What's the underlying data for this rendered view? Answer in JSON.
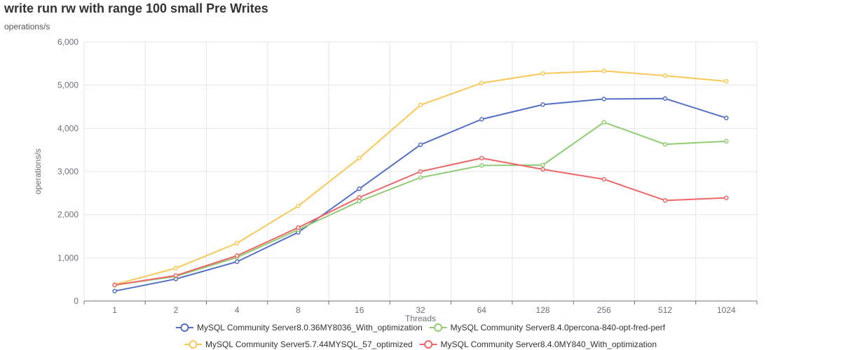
{
  "chart_data": {
    "type": "line",
    "title": "write run rw with range 100 small Pre Writes",
    "subtitle": "operations/s",
    "xlabel": "Threads",
    "ylabel": "operations/s",
    "categories": [
      "1",
      "2",
      "4",
      "8",
      "16",
      "32",
      "64",
      "128",
      "256",
      "512",
      "1024"
    ],
    "ylim": [
      0,
      6000
    ],
    "yticks": [
      0,
      1000,
      2000,
      3000,
      4000,
      5000,
      6000
    ],
    "ytick_labels": [
      "0",
      "1,000",
      "2,000",
      "3,000",
      "4,000",
      "5,000",
      "6,000"
    ],
    "grid": true,
    "legend_position": "bottom-center",
    "series": [
      {
        "name": "MySQL Community Server8.0.36MY8036_With_optimization",
        "color": "#5470c6",
        "values": [
          230,
          510,
          910,
          1590,
          2600,
          3620,
          4210,
          4550,
          4680,
          4690,
          4240
        ]
      },
      {
        "name": "MySQL Community Server8.4.0percona-840-opt-fred-perf",
        "color": "#91cc75",
        "values": [
          370,
          570,
          1010,
          1650,
          2310,
          2860,
          3140,
          3150,
          4140,
          3630,
          3700
        ]
      },
      {
        "name": "MySQL Community Server5.7.44MYSQL_57_optimized",
        "color": "#fac858",
        "values": [
          380,
          760,
          1340,
          2200,
          3310,
          4540,
          5050,
          5270,
          5330,
          5220,
          5090
        ]
      },
      {
        "name": "MySQL Community Server8.4.0MY840_With_optimization",
        "color": "#ee6666",
        "values": [
          370,
          590,
          1050,
          1700,
          2400,
          3000,
          3310,
          3050,
          2820,
          2330,
          2390
        ]
      }
    ]
  }
}
